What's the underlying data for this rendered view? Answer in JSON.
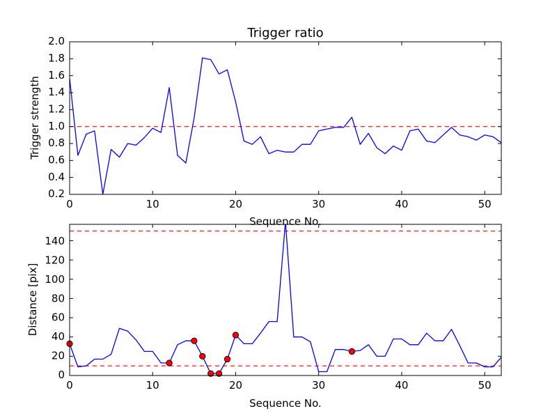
{
  "chart_data": [
    {
      "type": "line",
      "title": "Trigger ratio",
      "xlabel": "Sequence No.",
      "ylabel": "Trigger strength",
      "xlim": [
        0,
        52
      ],
      "ylim": [
        0.2,
        2.0
      ],
      "xticks": [
        "0",
        "10",
        "20",
        "30",
        "40",
        "50"
      ],
      "yticks": [
        "0.2",
        "0.4",
        "0.6",
        "0.8",
        "1.0",
        "1.2",
        "1.4",
        "1.6",
        "1.8",
        "2.0"
      ],
      "grid": false,
      "series": [
        {
          "color": "#0000ff",
          "x": [
            0,
            1,
            2,
            3,
            4,
            5,
            6,
            7,
            8,
            9,
            10,
            11,
            12,
            13,
            14,
            15,
            16,
            17,
            18,
            19,
            20,
            21,
            22,
            23,
            24,
            25,
            26,
            27,
            28,
            29,
            30,
            31,
            32,
            33,
            34,
            35,
            36,
            37,
            38,
            39,
            40,
            41,
            42,
            43,
            44,
            45,
            46,
            47,
            48,
            49,
            50,
            51,
            52
          ],
          "values": [
            1.57,
            0.66,
            0.91,
            0.95,
            0.2,
            0.73,
            0.64,
            0.8,
            0.78,
            0.87,
            0.98,
            0.93,
            1.46,
            0.66,
            0.57,
            1.1,
            1.81,
            1.79,
            1.62,
            1.67,
            1.29,
            0.83,
            0.79,
            0.88,
            0.68,
            0.72,
            0.7,
            0.7,
            0.79,
            0.79,
            0.95,
            0.97,
            0.99,
            0.99,
            1.11,
            0.79,
            0.92,
            0.75,
            0.68,
            0.77,
            0.72,
            0.95,
            0.97,
            0.83,
            0.81,
            0.9,
            0.99,
            0.9,
            0.88,
            0.84,
            0.9,
            0.88,
            0.81
          ]
        }
      ],
      "hlines": [
        {
          "y": 1.0,
          "color": "#ff0000",
          "style": "dashed"
        }
      ]
    },
    {
      "type": "line",
      "xlabel": "Sequence No.",
      "ylabel": "Distance [pix]",
      "xlim": [
        0,
        52
      ],
      "ylim": [
        0,
        157
      ],
      "xticks": [
        "0",
        "10",
        "20",
        "30",
        "40",
        "50"
      ],
      "yticks": [
        "0",
        "20",
        "40",
        "60",
        "80",
        "100",
        "120",
        "140"
      ],
      "grid": false,
      "series": [
        {
          "color": "#0000ff",
          "x": [
            0,
            1,
            2,
            3,
            4,
            5,
            6,
            7,
            8,
            9,
            10,
            11,
            12,
            13,
            14,
            15,
            16,
            17,
            18,
            19,
            20,
            21,
            22,
            23,
            24,
            25,
            26,
            27,
            28,
            29,
            30,
            31,
            32,
            33,
            34,
            35,
            36,
            37,
            38,
            39,
            40,
            41,
            42,
            43,
            44,
            45,
            46,
            47,
            48,
            49,
            50,
            51,
            52
          ],
          "values": [
            33,
            9,
            10,
            17,
            17,
            22,
            49,
            46,
            37,
            25,
            25,
            13,
            13,
            32,
            36,
            36,
            20,
            2,
            2,
            17,
            42,
            33,
            33,
            44,
            56,
            56,
            160,
            40,
            40,
            35,
            4,
            4,
            27,
            27,
            25,
            26,
            32,
            20,
            20,
            38,
            38,
            32,
            32,
            44,
            36,
            36,
            48,
            31,
            13,
            13,
            9,
            9,
            19
          ]
        },
        {
          "color": "#ff0000",
          "marker": "circle",
          "x": [
            0,
            12,
            15,
            16,
            17,
            18,
            19,
            20,
            34
          ],
          "values": [
            33,
            13,
            36,
            20,
            2,
            2,
            17,
            42,
            25
          ]
        }
      ],
      "hlines": [
        {
          "y": 150,
          "color": "#ff0000",
          "style": "dashed"
        },
        {
          "y": 10,
          "color": "#ff0000",
          "style": "dashed"
        }
      ]
    }
  ]
}
